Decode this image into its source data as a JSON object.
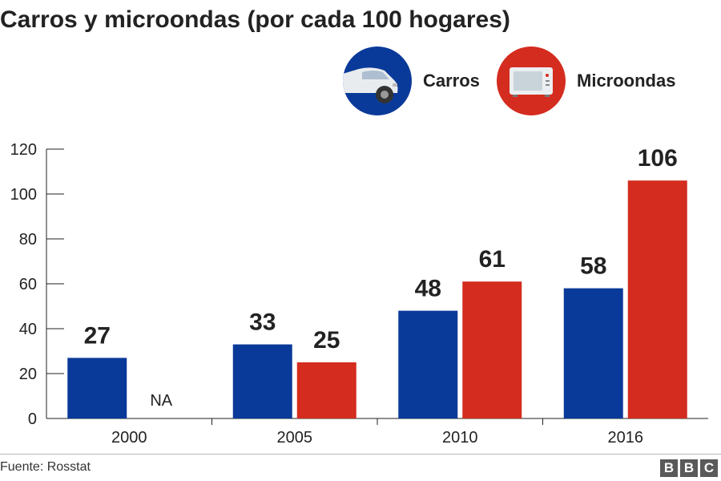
{
  "chart_data": {
    "type": "bar",
    "title": "Carros y microondas (por cada 100 hogares)",
    "categories": [
      "2000",
      "2005",
      "2010",
      "2016"
    ],
    "series": [
      {
        "name": "Carros",
        "values": [
          27,
          33,
          48,
          58
        ],
        "labels": [
          "27",
          "33",
          "48",
          "58"
        ],
        "color": "#0a3a99"
      },
      {
        "name": "Microondas",
        "values": [
          null,
          25,
          61,
          106
        ],
        "labels": [
          "NA",
          "25",
          "61",
          "106"
        ],
        "color": "#d42c1f"
      }
    ],
    "ylim": [
      0,
      120
    ],
    "yticks": [
      0,
      20,
      40,
      60,
      80,
      100,
      120
    ],
    "grid": false,
    "legend": "top-right"
  },
  "legend": {
    "items": [
      {
        "label": "Carros",
        "icon": "car-icon",
        "color": "#0a3a99"
      },
      {
        "label": "Microondas",
        "icon": "microwave-icon",
        "color": "#d42c1f"
      }
    ]
  },
  "footer": {
    "source": "Fuente: Rosstat",
    "logo_letters": [
      "B",
      "B",
      "C"
    ]
  }
}
